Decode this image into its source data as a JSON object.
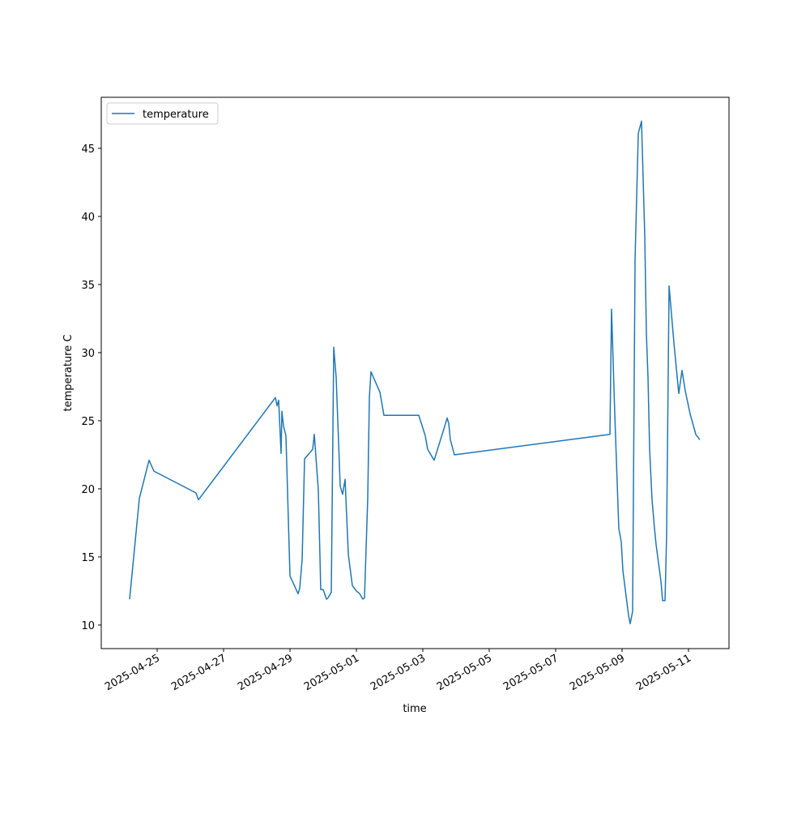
{
  "chart_data": {
    "type": "line",
    "xlabel": "time",
    "ylabel": "temperature C",
    "x": [
      "2025-04-24T04:06",
      "2025-04-24T11:08",
      "2025-04-24T18:09",
      "2025-04-24T21:40",
      "2025-04-26T04:06",
      "2025-04-26T05:51",
      "2025-04-28T13:28",
      "2025-04-28T14:38",
      "2025-04-28T15:49",
      "2025-04-28T17:34",
      "2025-04-28T18:09",
      "2025-04-28T19:19",
      "2025-04-28T21:04",
      "2025-04-29T00:00",
      "2025-04-29T05:51",
      "2025-04-29T07:02",
      "2025-04-29T08:47",
      "2025-04-29T10:32",
      "2025-04-29T16:23",
      "2025-04-29T17:34",
      "2025-04-29T20:29",
      "2025-04-29T22:14",
      "2025-04-30T00:00",
      "2025-04-30T02:21",
      "2025-04-30T03:31",
      "2025-04-30T05:51",
      "2025-04-30T07:37",
      "2025-04-30T09:22",
      "2025-04-30T12:17",
      "2025-04-30T14:02",
      "2025-04-30T15:49",
      "2025-04-30T18:09",
      "2025-04-30T21:04",
      "2025-05-01T00:00",
      "2025-05-01T02:21",
      "2025-05-01T04:41",
      "2025-05-01T05:51",
      "2025-05-01T08:11",
      "2025-05-01T09:22",
      "2025-05-01T10:32",
      "2025-05-01T16:58",
      "2025-05-01T19:54",
      "2025-05-02T21:04",
      "2025-05-03T01:45",
      "2025-05-03T03:30",
      "2025-05-03T08:11",
      "2025-05-03T15:49",
      "2025-05-03T17:34",
      "2025-05-03T18:44",
      "2025-05-03T19:54",
      "2025-05-03T22:49",
      "2025-05-08T15:13",
      "2025-05-08T16:23",
      "2025-05-08T18:43",
      "2025-05-08T21:38",
      "2025-05-08T23:25",
      "2025-05-09T00:35",
      "2025-05-09T04:41",
      "2025-05-09T05:51",
      "2025-05-09T07:36",
      "2025-05-09T09:22",
      "2025-05-09T11:43",
      "2025-05-09T14:02",
      "2025-05-09T16:23",
      "2025-05-09T17:34",
      "2025-05-09T18:43",
      "2025-05-09T19:54",
      "2025-05-09T21:39",
      "2025-05-09T23:25",
      "2025-05-10T00:35",
      "2025-05-10T04:06",
      "2025-05-10T05:16",
      "2025-05-10T07:02",
      "2025-05-10T08:11",
      "2025-05-10T09:58",
      "2025-05-10T13:28",
      "2025-05-10T16:58",
      "2025-05-10T19:19",
      "2025-05-10T21:39",
      "2025-05-11T01:10",
      "2025-05-11T05:16",
      "2025-05-11T08:11"
    ],
    "series": [
      {
        "name": "temperature",
        "color": "#1f77b4",
        "values": [
          11.9,
          19.3,
          22.1,
          21.3,
          19.7,
          19.2,
          26.7,
          26.1,
          26.5,
          22.6,
          25.7,
          24.6,
          23.9,
          13.6,
          12.3,
          12.7,
          14.8,
          22.2,
          22.9,
          24.0,
          19.9,
          12.6,
          12.6,
          11.9,
          12.0,
          12.4,
          30.4,
          28.2,
          20.2,
          19.6,
          20.7,
          15.2,
          12.9,
          12.5,
          12.3,
          11.9,
          12.0,
          19.3,
          26.7,
          28.6,
          27.1,
          25.4,
          25.4,
          23.9,
          22.9,
          22.1,
          24.6,
          25.2,
          24.8,
          23.6,
          22.5,
          24.0,
          33.2,
          25.5,
          17.1,
          16.1,
          14.0,
          10.7,
          10.1,
          11.0,
          36.8,
          46.1,
          47.0,
          38.6,
          31.4,
          28.2,
          22.9,
          19.2,
          17.1,
          15.9,
          13.2,
          11.8,
          11.8,
          16.6,
          34.9,
          30.7,
          27.0,
          28.7,
          27.2,
          25.5,
          24.0,
          23.6
        ]
      }
    ],
    "xlim": [
      "2025-04-23T07:36",
      "2025-05-12T05:16"
    ],
    "xticks": [
      "2025-04-25",
      "2025-04-27",
      "2025-04-29",
      "2025-05-01",
      "2025-05-03",
      "2025-05-05",
      "2025-05-07",
      "2025-05-09",
      "2025-05-11"
    ],
    "ylim": [
      8.27,
      48.75
    ],
    "yticks": [
      10,
      15,
      20,
      25,
      30,
      35,
      40,
      45
    ],
    "grid": false,
    "legend": "upper left"
  }
}
